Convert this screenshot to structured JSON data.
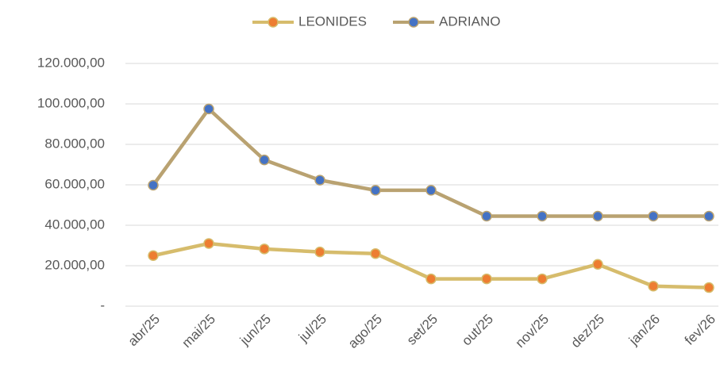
{
  "chart_data": {
    "type": "line",
    "categories": [
      "abr/25",
      "mai/25",
      "jun/25",
      "jul/25",
      "ago/25",
      "set/25",
      "out/25",
      "nov/25",
      "dez/25",
      "jan/26",
      "fev/26"
    ],
    "series": [
      {
        "name": "LEONIDES",
        "color": "#d6bc6c",
        "marker_color": "#ed7d31",
        "values": [
          25000,
          31000,
          28300,
          26800,
          26000,
          13500,
          13500,
          13500,
          20700,
          9900,
          9200
        ]
      },
      {
        "name": "ADRIANO",
        "color": "#b9a271",
        "marker_color": "#4472c4",
        "values": [
          59800,
          97500,
          72300,
          62300,
          57300,
          57300,
          44500,
          44500,
          44500,
          44500,
          44500
        ]
      }
    ],
    "ylim": [
      0,
      120000
    ],
    "yticks": [
      {
        "value": 0,
        "label": "-"
      },
      {
        "value": 20000,
        "label": "20.000,00"
      },
      {
        "value": 40000,
        "label": "40.000,00"
      },
      {
        "value": 60000,
        "label": "60.000,00"
      },
      {
        "value": 80000,
        "label": "80.000,00"
      },
      {
        "value": 100000,
        "label": "100.000,00"
      },
      {
        "value": 120000,
        "label": "120.000,00"
      }
    ],
    "grid": true,
    "legend": "top"
  }
}
